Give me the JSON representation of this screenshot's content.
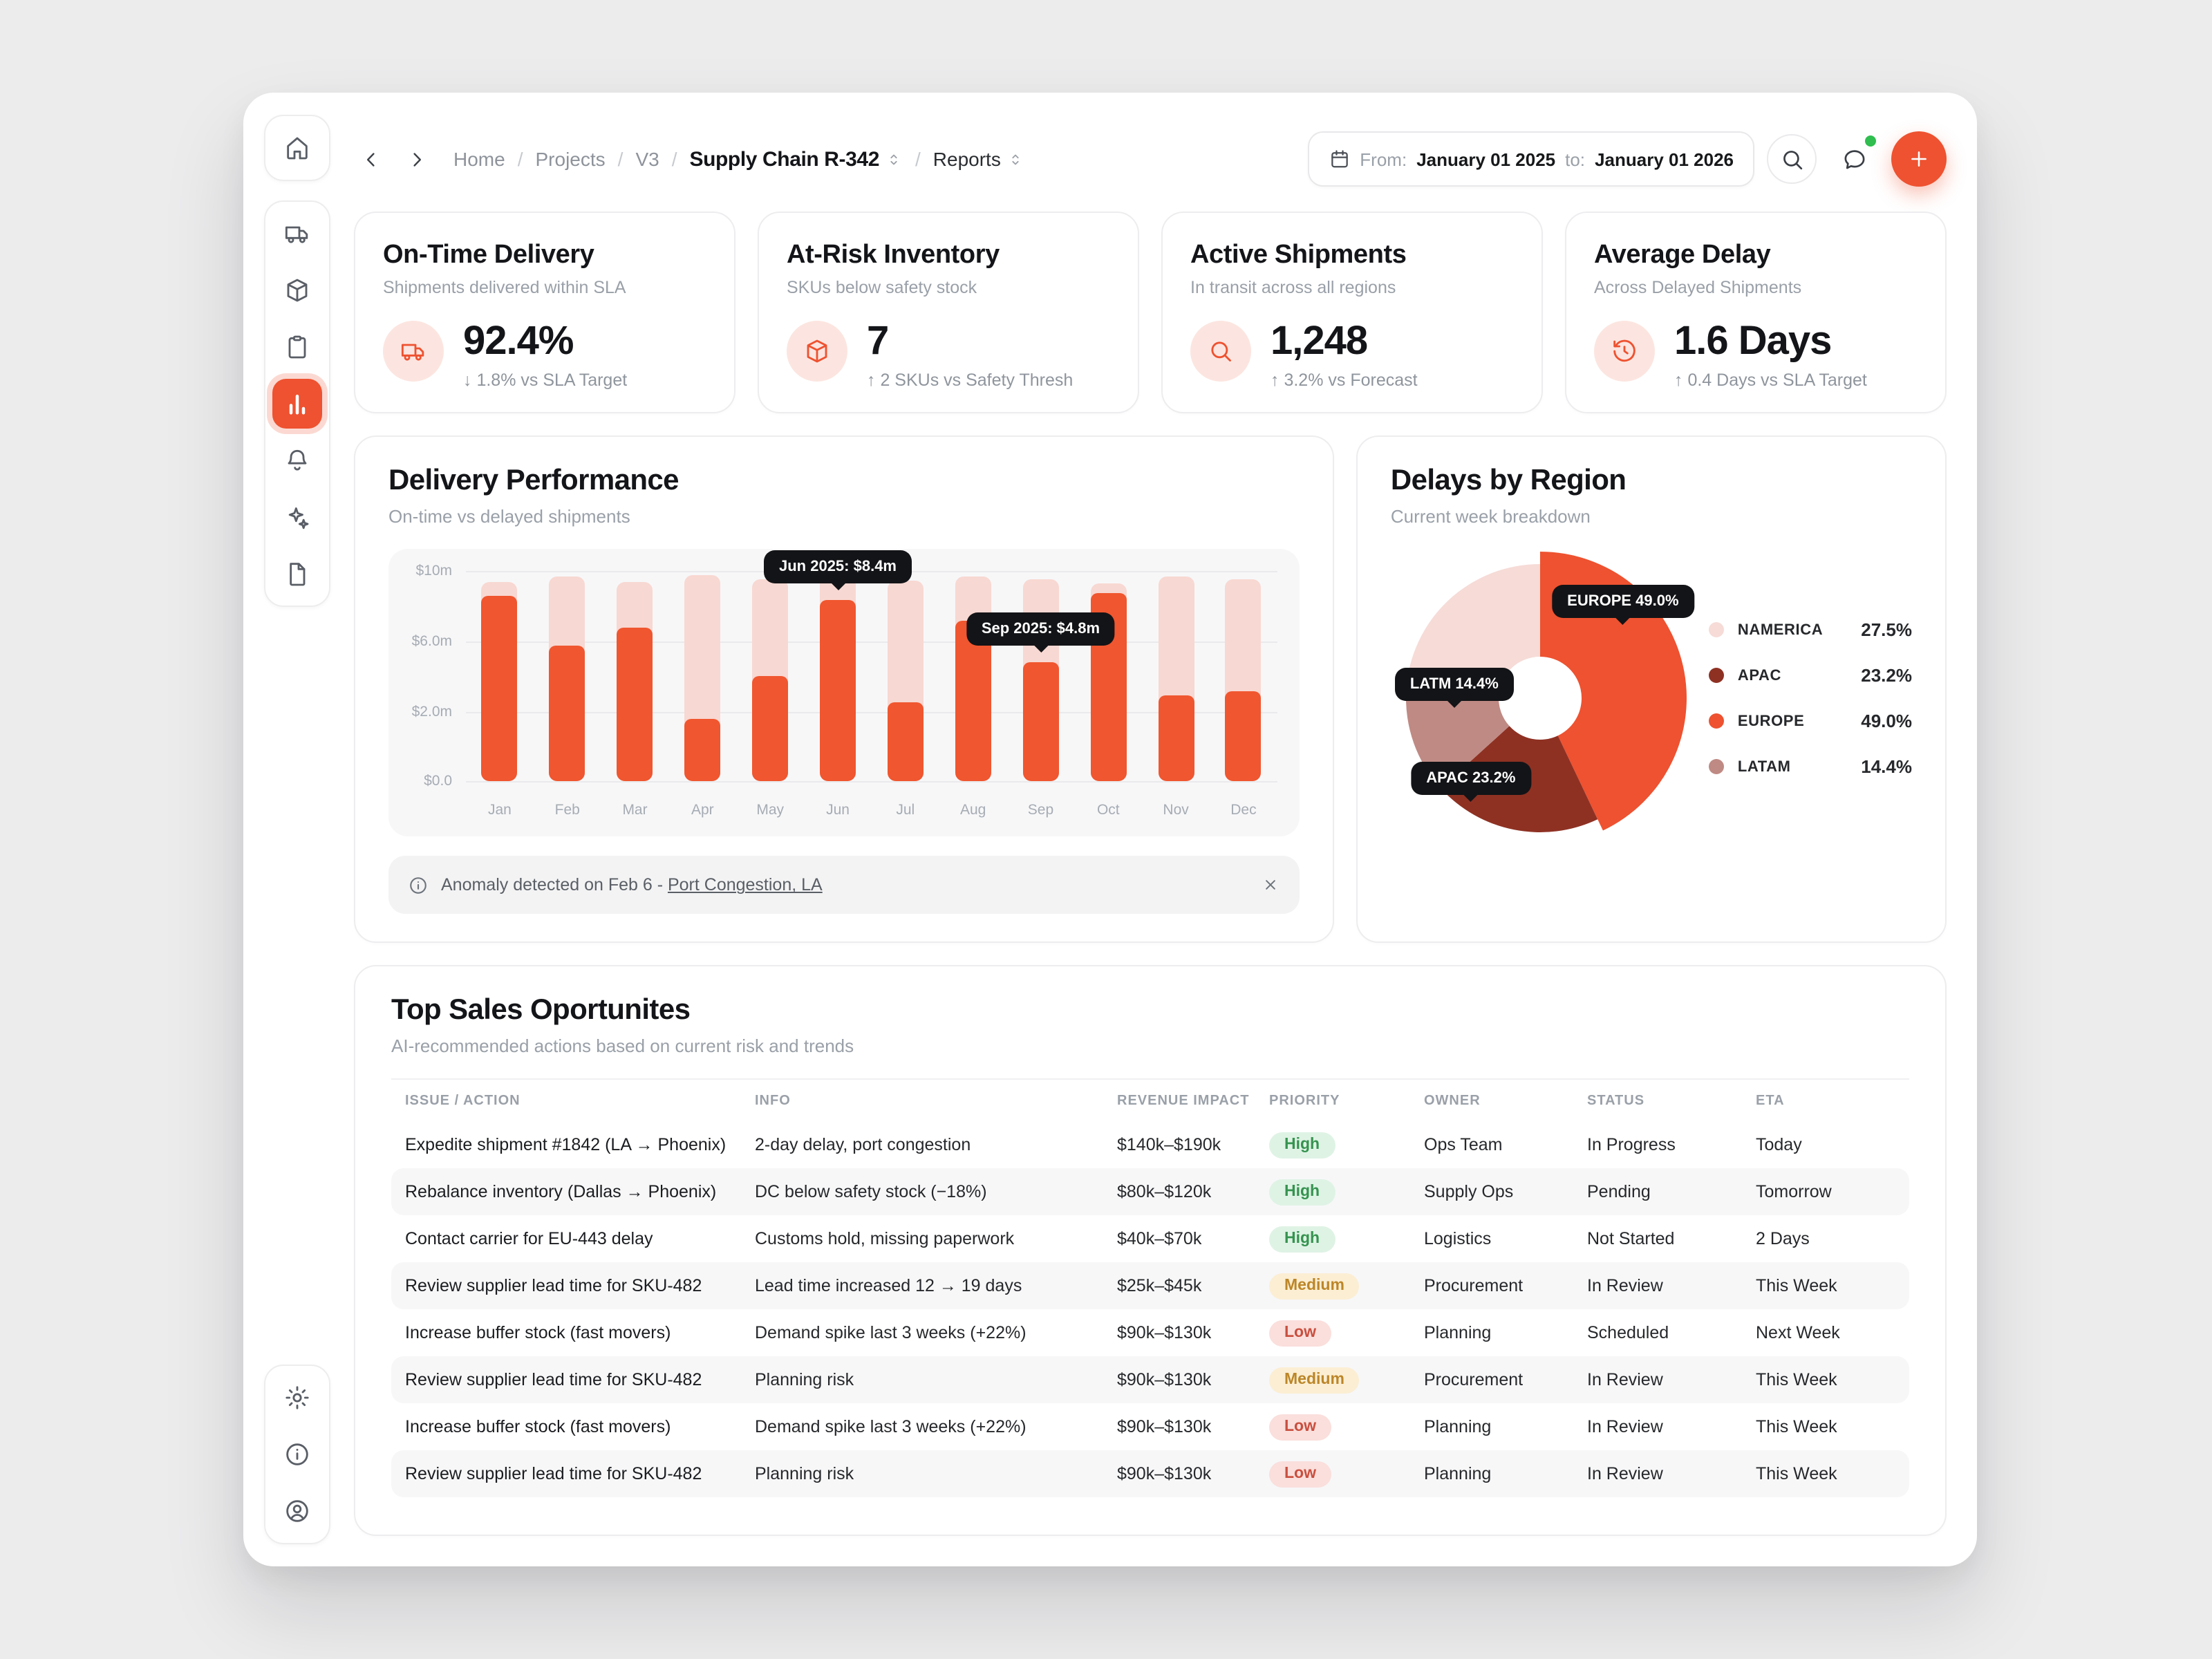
{
  "colors": {
    "accent": "#EE5230",
    "bar_on_time": "#F0562F",
    "bar_delayed": "#F8D8D2",
    "online_dot": "#2FBE4F",
    "priority_high": "#35934F",
    "priority_medium": "#BC8628",
    "priority_low": "#C94F3F"
  },
  "sidebar": {
    "top_items": [
      {
        "id": "home",
        "icon": "home",
        "active": false
      }
    ],
    "main_items": [
      {
        "id": "deliveries",
        "icon": "truck",
        "active": false
      },
      {
        "id": "inventory",
        "icon": "package",
        "active": false
      },
      {
        "id": "orders",
        "icon": "clipboard",
        "active": false
      },
      {
        "id": "analytics",
        "icon": "chart",
        "active": true
      },
      {
        "id": "notifications",
        "icon": "bell",
        "active": false
      },
      {
        "id": "ai-insights",
        "icon": "sparkles",
        "active": false
      },
      {
        "id": "documents",
        "icon": "file",
        "active": false
      }
    ],
    "bottom_items": [
      {
        "id": "settings",
        "icon": "gear",
        "active": false
      },
      {
        "id": "help",
        "icon": "info",
        "active": false
      },
      {
        "id": "account",
        "icon": "user",
        "active": false
      }
    ]
  },
  "header": {
    "breadcrumb": [
      {
        "label": "Home",
        "style": "muted",
        "selector": false
      },
      {
        "label": "Projects",
        "style": "muted",
        "selector": false
      },
      {
        "label": "V3",
        "style": "muted",
        "selector": false
      },
      {
        "label": "Supply Chain R-342",
        "style": "current",
        "selector": true
      },
      {
        "label": "Reports",
        "style": "dark",
        "selector": true
      }
    ],
    "date_range": {
      "from_label": "From:",
      "from_value": "January 01 2025",
      "to_label": "to:",
      "to_value": "January 01 2026"
    }
  },
  "kpis": [
    {
      "title": "On-Time Delivery",
      "subtitle": "Shipments delivered within SLA",
      "icon": "truck",
      "value": "92.4%",
      "delta": "↓ 1.8% vs SLA Target"
    },
    {
      "title": "At-Risk Inventory",
      "subtitle": "SKUs below safety stock",
      "icon": "package",
      "value": "7",
      "delta": "↑ 2 SKUs vs Safety Thresh"
    },
    {
      "title": "Active Shipments",
      "subtitle": "In transit across all regions",
      "icon": "search",
      "value": "1,248",
      "delta": "↑ 3.2% vs Forecast"
    },
    {
      "title": "Average Delay",
      "subtitle": "Across Delayed Shipments",
      "icon": "history",
      "value": "1.6 Days",
      "delta": "↑ 0.4 Days vs SLA Target"
    }
  ],
  "delivery_performance": {
    "title": "Delivery Performance",
    "subtitle": "On-time vs delayed shipments",
    "chart_data": {
      "type": "bar",
      "stacked": true,
      "categories": [
        "Jan",
        "Feb",
        "Mar",
        "Apr",
        "May",
        "Jun",
        "Jul",
        "Aug",
        "Sep",
        "Oct",
        "Nov",
        "Dec"
      ],
      "series": [
        {
          "name": "On-time",
          "color": "#F0562F",
          "values": [
            8.6,
            5.8,
            6.8,
            1.8,
            4.0,
            8.4,
            2.5,
            7.2,
            4.8,
            8.8,
            2.9,
            3.2
          ]
        },
        {
          "name": "Delayed",
          "color": "#F8D8D2",
          "values": [
            0.8,
            3.9,
            2.6,
            8.0,
            5.6,
            1.3,
            7.0,
            2.5,
            4.8,
            0.5,
            6.8,
            6.4
          ]
        }
      ],
      "unit": "$m",
      "y_ticks": [
        {
          "label": "$0.0",
          "value": 0
        },
        {
          "label": "$2.0m",
          "value": 2
        },
        {
          "label": "$6.0m",
          "value": 6
        },
        {
          "label": "$10m",
          "value": 10
        }
      ],
      "tooltips": [
        {
          "category_index": 5,
          "label": "Jun 2025: $8.4m"
        },
        {
          "category_index": 8,
          "label": "Sep 2025: $4.8m"
        }
      ]
    }
  },
  "anomaly_banner": {
    "text": "Anomaly detected on Feb 6 - ",
    "link_text": "Port Congestion, LA"
  },
  "delays_by_region": {
    "title": "Delays by Region",
    "subtitle": "Current week breakdown",
    "chart_data": {
      "type": "pie",
      "order": [
        "EUROPE",
        "APAC",
        "LATAM",
        "NAMERICA"
      ],
      "segments": [
        {
          "name": "NAMERICA",
          "value": 27.5,
          "color": "#F6DBD7",
          "emphasis": false
        },
        {
          "name": "APAC",
          "value": 23.2,
          "color": "#8E3123",
          "emphasis": false
        },
        {
          "name": "EUROPE",
          "value": 49.0,
          "color": "#EE5230",
          "emphasis": true
        },
        {
          "name": "LATAM",
          "value": 14.4,
          "color": "#BF8A84",
          "emphasis": false
        }
      ],
      "tooltips": [
        {
          "label": "EUROPE 49.0%"
        },
        {
          "label": "LATM 14.4%"
        },
        {
          "label": "APAC 23.2%"
        }
      ]
    },
    "legend": [
      {
        "name": "NAMERICA",
        "value": "27.5%"
      },
      {
        "name": "APAC",
        "value": "23.2%"
      },
      {
        "name": "EUROPE",
        "value": "49.0%"
      },
      {
        "name": "LATAM",
        "value": "14.4%"
      }
    ]
  },
  "opportunities": {
    "title": "Top Sales Oportunites",
    "subtitle": "AI-recommended actions based on current risk and trends",
    "columns": [
      "ISSUE / ACTION",
      "INFO",
      "REVENUE IMPACT",
      "PRIORITY",
      "OWNER",
      "STATUS",
      "ETA"
    ],
    "rows": [
      {
        "action": "Expedite shipment #1842  (LA → Phoenix)",
        "info": "2-day delay, port congestion",
        "impact": "$140k–$190k",
        "priority": "High",
        "owner": "Ops Team",
        "status": "In Progress",
        "eta": "Today"
      },
      {
        "action": "Rebalance inventory (Dallas → Phoenix)",
        "info": "DC below safety stock (−18%)",
        "impact": "$80k–$120k",
        "priority": "High",
        "owner": "Supply Ops",
        "status": "Pending",
        "eta": "Tomorrow"
      },
      {
        "action": "Contact carrier for EU-443 delay",
        "info": "Customs hold, missing paperwork",
        "impact": "$40k–$70k",
        "priority": "High",
        "owner": "Logistics",
        "status": "Not Started",
        "eta": "2 Days"
      },
      {
        "action": "Review supplier lead time for SKU-482",
        "info": "Lead time increased 12 → 19 days",
        "impact": "$25k–$45k",
        "priority": "Medium",
        "owner": "Procurement",
        "status": "In Review",
        "eta": "This Week"
      },
      {
        "action": "Increase buffer stock (fast movers)",
        "info": "Demand spike last 3 weeks (+22%)",
        "impact": "$90k–$130k",
        "priority": "Low",
        "owner": "Planning",
        "status": "Scheduled",
        "eta": "Next Week"
      },
      {
        "action": "Review supplier lead time for SKU-482",
        "info": "Planning risk",
        "impact": "$90k–$130k",
        "priority": "Medium",
        "owner": "Procurement",
        "status": "In Review",
        "eta": "This Week"
      },
      {
        "action": "Increase buffer stock (fast movers)",
        "info": "Demand spike last 3 weeks (+22%)",
        "impact": "$90k–$130k",
        "priority": "Low",
        "owner": "Planning",
        "status": "In Review",
        "eta": "This Week"
      },
      {
        "action": "Review supplier lead time for SKU-482",
        "info": "Planning risk",
        "impact": "$90k–$130k",
        "priority": "Low",
        "owner": "Planning",
        "status": "In Review",
        "eta": "This Week"
      }
    ]
  }
}
